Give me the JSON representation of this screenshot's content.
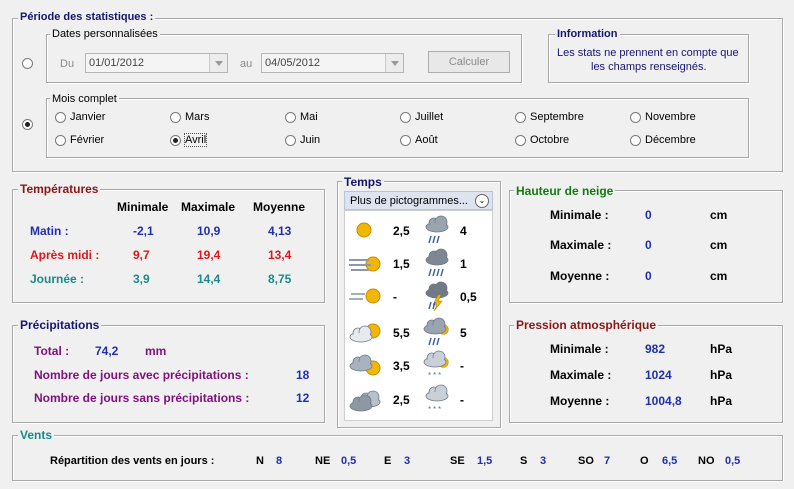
{
  "period": {
    "title": "Période des statistiques :",
    "custom_dates": {
      "legend": "Dates personnalisées",
      "from_label": "Du",
      "from_value": "01/01/2012",
      "to_label": "au",
      "to_value": "04/05/2012",
      "button": "Calculer"
    },
    "month": {
      "legend": "Mois complet",
      "months": [
        "Janvier",
        "Février",
        "Mars",
        "Avril",
        "Mai",
        "Juin",
        "Juillet",
        "Août",
        "Septembre",
        "Octobre",
        "Novembre",
        "Décembre"
      ],
      "selected": "Avril"
    },
    "info": {
      "legend": "Information",
      "text_line1": "Les stats ne prennent en compte que",
      "text_line2": "les champs renseignés."
    }
  },
  "temperatures": {
    "title": "Températures",
    "headers": [
      "Minimale",
      "Maximale",
      "Moyenne"
    ],
    "rows": [
      {
        "label": "Matin :",
        "min": "-2,1",
        "max": "10,9",
        "avg": "4,13"
      },
      {
        "label": "Après midi :",
        "min": "9,7",
        "max": "19,4",
        "avg": "13,4"
      },
      {
        "label": "Journée :",
        "min": "3,9",
        "max": "14,4",
        "avg": "8,75"
      }
    ]
  },
  "weather": {
    "title": "Temps",
    "dropdown": "Plus de pictogrammes...",
    "left": [
      {
        "icon": "sun-icon",
        "value": "2,5"
      },
      {
        "icon": "fog-sun-icon",
        "value": "1,5"
      },
      {
        "icon": "haze-sun-icon",
        "value": "-"
      },
      {
        "icon": "partly-cloudy-icon",
        "value": "5,5"
      },
      {
        "icon": "cloudy-sun-icon",
        "value": "3,5"
      },
      {
        "icon": "overcast-icon",
        "value": "2,5"
      }
    ],
    "right": [
      {
        "icon": "rain-icon",
        "value": "4"
      },
      {
        "icon": "heavy-rain-icon",
        "value": "1"
      },
      {
        "icon": "thunderstorm-icon",
        "value": "0,5"
      },
      {
        "icon": "rain-sun-icon",
        "value": "5"
      },
      {
        "icon": "snow-sun-icon",
        "value": "-"
      },
      {
        "icon": "snow-icon",
        "value": "-"
      }
    ]
  },
  "snow": {
    "title": "Hauteur de neige",
    "rows": [
      {
        "label": "Minimale :",
        "value": "0",
        "unit": "cm"
      },
      {
        "label": "Maximale :",
        "value": "0",
        "unit": "cm"
      },
      {
        "label": "Moyenne :",
        "value": "0",
        "unit": "cm"
      }
    ]
  },
  "precip": {
    "title": "Précipitations",
    "total_label": "Total :",
    "total_value": "74,2",
    "total_unit": "mm",
    "with_label": "Nombre de jours avec précipitations :",
    "with_value": "18",
    "without_label": "Nombre de jours sans précipitations :",
    "without_value": "12"
  },
  "pressure": {
    "title": "Pression atmosphérique",
    "rows": [
      {
        "label": "Minimale :",
        "value": "982",
        "unit": "hPa"
      },
      {
        "label": "Maximale :",
        "value": "1024",
        "unit": "hPa"
      },
      {
        "label": "Moyenne :",
        "value": "1004,8",
        "unit": "hPa"
      }
    ]
  },
  "winds": {
    "title": "Vents",
    "label": "Répartition des vents en jours :",
    "dirs": [
      {
        "dir": "N",
        "value": "8"
      },
      {
        "dir": "NE",
        "value": "0,5"
      },
      {
        "dir": "E",
        "value": "3"
      },
      {
        "dir": "SE",
        "value": "1,5"
      },
      {
        "dir": "S",
        "value": "3"
      },
      {
        "dir": "SO",
        "value": "7"
      },
      {
        "dir": "O",
        "value": "6,5"
      },
      {
        "dir": "NO",
        "value": "0,5"
      }
    ]
  },
  "colors": {
    "blue_values": "#1f2fb0",
    "morning": "#1f2fb0",
    "afternoon": "#e0161b",
    "day": "#1b8a8a",
    "precip_labels": "#80127f",
    "snow_title": "#137a13",
    "pressure_title": "#8b1616"
  }
}
